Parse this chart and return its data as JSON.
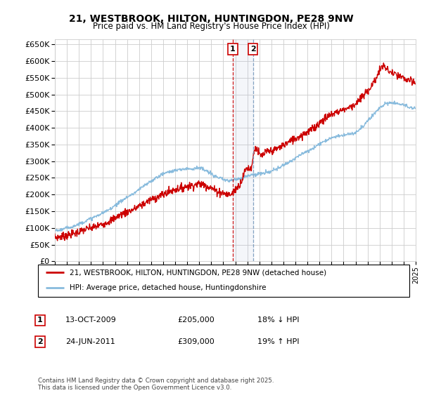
{
  "title": "21, WESTBROOK, HILTON, HUNTINGDON, PE28 9NW",
  "subtitle": "Price paid vs. HM Land Registry's House Price Index (HPI)",
  "legend_line1": "21, WESTBROOK, HILTON, HUNTINGDON, PE28 9NW (detached house)",
  "legend_line2": "HPI: Average price, detached house, Huntingdonshire",
  "footer": "Contains HM Land Registry data © Crown copyright and database right 2025.\nThis data is licensed under the Open Government Licence v3.0.",
  "red_color": "#cc0000",
  "blue_color": "#88bbdd",
  "annotation1": {
    "label": "1",
    "date": "13-OCT-2009",
    "price": "£205,000",
    "pct": "18% ↓ HPI",
    "x_year": 2009.79
  },
  "annotation2": {
    "label": "2",
    "date": "24-JUN-2011",
    "price": "£309,000",
    "pct": "19% ↑ HPI",
    "x_year": 2011.48
  },
  "xmin": 1995,
  "xmax": 2025,
  "ymin": 0,
  "ymax": 650000,
  "yticks": [
    0,
    50000,
    100000,
    150000,
    200000,
    250000,
    300000,
    350000,
    400000,
    450000,
    500000,
    550000,
    600000,
    650000
  ],
  "red_years": [
    1995.0,
    1995.5,
    1996.0,
    1996.5,
    1997.0,
    1997.5,
    1998.0,
    1998.5,
    1999.0,
    1999.5,
    2000.0,
    2000.5,
    2001.0,
    2001.5,
    2002.0,
    2002.5,
    2003.0,
    2003.5,
    2004.0,
    2004.5,
    2005.0,
    2005.5,
    2006.0,
    2006.5,
    2007.0,
    2007.5,
    2008.0,
    2008.5,
    2009.0,
    2009.5,
    2009.79,
    2010.0,
    2010.5,
    2011.0,
    2011.48,
    2011.5,
    2012.0,
    2012.5,
    2013.0,
    2013.5,
    2014.0,
    2014.5,
    2015.0,
    2015.5,
    2016.0,
    2016.5,
    2017.0,
    2017.5,
    2018.0,
    2018.5,
    2019.0,
    2019.5,
    2020.0,
    2020.5,
    2021.0,
    2021.5,
    2022.0,
    2022.3,
    2022.6,
    2023.0,
    2023.5,
    2024.0,
    2024.5,
    2025.0
  ],
  "red_vals": [
    72000,
    74000,
    78000,
    82000,
    88000,
    95000,
    100000,
    105000,
    112000,
    120000,
    130000,
    140000,
    148000,
    155000,
    165000,
    175000,
    185000,
    192000,
    200000,
    208000,
    215000,
    220000,
    225000,
    228000,
    232000,
    228000,
    220000,
    210000,
    205000,
    200000,
    205000,
    215000,
    240000,
    280000,
    309000,
    315000,
    320000,
    325000,
    330000,
    338000,
    348000,
    358000,
    368000,
    378000,
    388000,
    398000,
    415000,
    428000,
    440000,
    448000,
    455000,
    462000,
    472000,
    490000,
    510000,
    535000,
    570000,
    585000,
    575000,
    565000,
    555000,
    548000,
    540000,
    535000
  ],
  "blue_years": [
    1995.0,
    1995.5,
    1996.0,
    1996.5,
    1997.0,
    1997.5,
    1998.0,
    1998.5,
    1999.0,
    1999.5,
    2000.0,
    2000.5,
    2001.0,
    2001.5,
    2002.0,
    2002.5,
    2003.0,
    2003.5,
    2004.0,
    2004.5,
    2005.0,
    2005.5,
    2006.0,
    2006.5,
    2007.0,
    2007.5,
    2008.0,
    2008.5,
    2009.0,
    2009.5,
    2010.0,
    2010.5,
    2011.0,
    2011.5,
    2012.0,
    2012.5,
    2013.0,
    2013.5,
    2014.0,
    2014.5,
    2015.0,
    2015.5,
    2016.0,
    2016.5,
    2017.0,
    2017.5,
    2018.0,
    2018.5,
    2019.0,
    2019.5,
    2020.0,
    2020.5,
    2021.0,
    2021.5,
    2022.0,
    2022.5,
    2023.0,
    2023.5,
    2024.0,
    2024.5,
    2025.0
  ],
  "blue_vals": [
    92000,
    95000,
    100000,
    105000,
    112000,
    120000,
    128000,
    136000,
    145000,
    155000,
    168000,
    180000,
    192000,
    202000,
    215000,
    228000,
    240000,
    252000,
    262000,
    268000,
    272000,
    275000,
    278000,
    278000,
    280000,
    272000,
    262000,
    252000,
    245000,
    242000,
    245000,
    250000,
    256000,
    260000,
    262000,
    265000,
    270000,
    278000,
    288000,
    298000,
    310000,
    320000,
    330000,
    340000,
    352000,
    362000,
    370000,
    375000,
    378000,
    382000,
    386000,
    400000,
    420000,
    440000,
    460000,
    472000,
    475000,
    472000,
    468000,
    462000,
    458000
  ]
}
